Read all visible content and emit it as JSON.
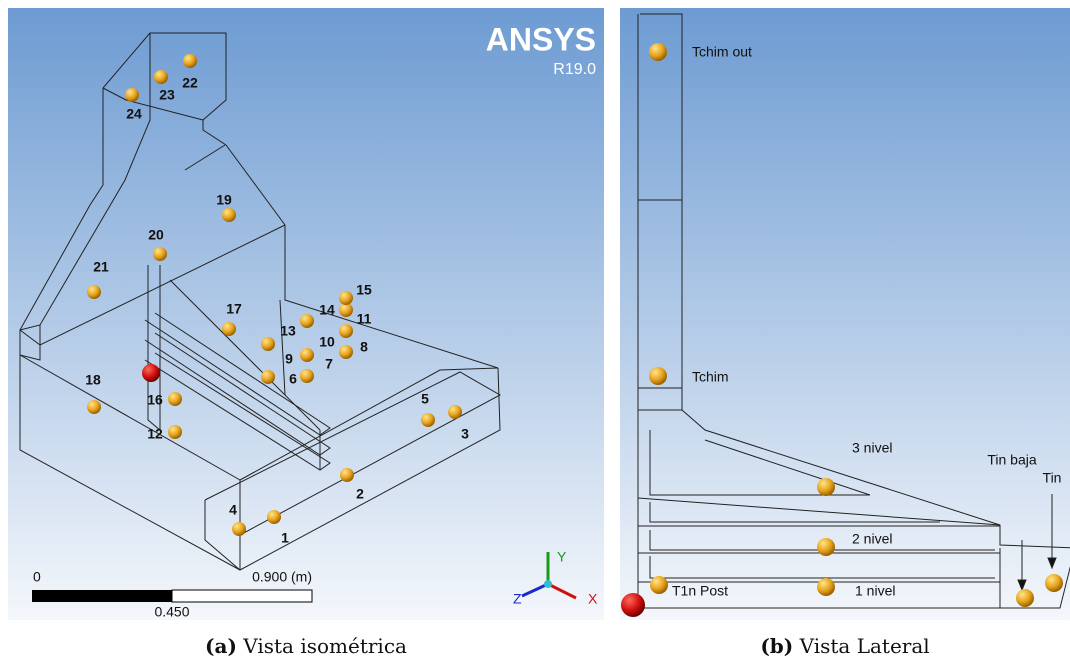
{
  "left_panel": {
    "logo": "ANSYS",
    "version": "R19.0",
    "probes": [
      "1",
      "2",
      "3",
      "4",
      "5",
      "6",
      "7",
      "8",
      "9",
      "10",
      "11",
      "12",
      "13",
      "14",
      "15",
      "16",
      "17",
      "18",
      "19",
      "20",
      "21",
      "22",
      "23",
      "24"
    ],
    "scale_bar": {
      "start": "0",
      "end": "0.900 (m)",
      "mid": "0.450"
    },
    "triad": {
      "y": "Y",
      "z": "Z",
      "x": "X"
    }
  },
  "right_panel": {
    "labels": [
      "Tchim out",
      "Tchim",
      "3 nivel",
      "2 nivel",
      "1 nivel",
      "T1n Post",
      "Tin baja",
      "Tin"
    ]
  },
  "captions": [
    {
      "label": "(a)",
      "text": "Vista isométrica"
    },
    {
      "label": "(b)",
      "text": "Vista Lateral"
    }
  ]
}
